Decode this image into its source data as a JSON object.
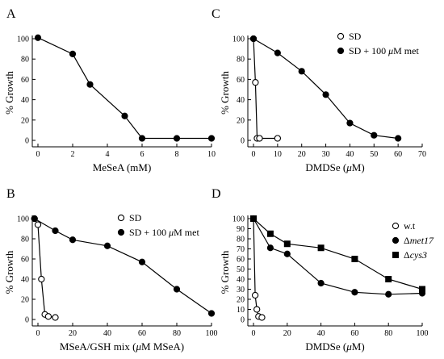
{
  "chart_data": [
    {
      "panel": "A",
      "type": "line",
      "ylabel": "% Growth",
      "xlabel_parts": [
        {
          "t": "MeSeA (mM)",
          "i": false
        }
      ],
      "xlim": [
        0,
        10
      ],
      "ylim": [
        0,
        100
      ],
      "xticks": [
        0,
        2,
        4,
        6,
        8,
        10
      ],
      "yticks": [
        0,
        20,
        40,
        60,
        80,
        100
      ],
      "legend": [],
      "series": [
        {
          "marker": "filled-circle",
          "x": [
            0,
            2,
            3,
            5,
            6,
            8,
            10
          ],
          "y": [
            101,
            85,
            55,
            24,
            2,
            2,
            2
          ]
        }
      ]
    },
    {
      "panel": "C",
      "type": "line",
      "ylabel": "% Growth",
      "xlabel_parts": [
        {
          "t": "DMDSe (",
          "i": false
        },
        {
          "t": "μ",
          "i": true
        },
        {
          "t": "M)",
          "i": false
        }
      ],
      "xlim": [
        0,
        70
      ],
      "ylim": [
        0,
        100
      ],
      "xticks": [
        0,
        10,
        20,
        30,
        40,
        50,
        60,
        70
      ],
      "yticks": [
        0,
        20,
        40,
        60,
        80,
        100
      ],
      "legend": [
        {
          "marker": "open-circle",
          "parts": [
            {
              "t": "SD",
              "i": false
            }
          ]
        },
        {
          "marker": "filled-circle",
          "parts": [
            {
              "t": "SD + 100 ",
              "i": false
            },
            {
              "t": "μ",
              "i": true
            },
            {
              "t": "M met",
              "i": false
            }
          ]
        }
      ],
      "series": [
        {
          "marker": "open-circle",
          "x": [
            0,
            0.8,
            1.5,
            2.5,
            10
          ],
          "y": [
            100,
            57,
            2,
            2,
            2
          ]
        },
        {
          "marker": "filled-circle",
          "x": [
            0,
            10,
            20,
            30,
            40,
            50,
            60
          ],
          "y": [
            100,
            86,
            68,
            45,
            17,
            5,
            2
          ]
        }
      ]
    },
    {
      "panel": "B",
      "type": "line",
      "ylabel": "% Growth",
      "xlabel_parts": [
        {
          "t": "MSeA/GSH mix  (",
          "i": false
        },
        {
          "t": "μ",
          "i": true
        },
        {
          "t": "M MSeA)",
          "i": false
        }
      ],
      "xlim": [
        0,
        100
      ],
      "ylim": [
        0,
        100
      ],
      "xticks": [
        0,
        20,
        40,
        60,
        80,
        100
      ],
      "yticks": [
        0,
        20,
        40,
        60,
        80,
        100
      ],
      "legend": [
        {
          "marker": "open-circle",
          "parts": [
            {
              "t": "SD",
              "i": false
            }
          ]
        },
        {
          "marker": "filled-circle",
          "parts": [
            {
              "t": "SD + 100 ",
              "i": false
            },
            {
              "t": "μ",
              "i": true
            },
            {
              "t": "M met",
              "i": false
            }
          ]
        }
      ],
      "series": [
        {
          "marker": "open-circle",
          "x": [
            -2,
            0,
            2,
            4,
            6,
            10
          ],
          "y": [
            100,
            94,
            40,
            5,
            3,
            2
          ]
        },
        {
          "marker": "filled-circle",
          "x": [
            -2,
            10,
            20,
            40,
            60,
            80,
            100
          ],
          "y": [
            100,
            88,
            79,
            73,
            57,
            30,
            6
          ]
        }
      ]
    },
    {
      "panel": "D",
      "type": "line",
      "ylabel": "% Growth",
      "xlabel_parts": [
        {
          "t": "DMDSe (",
          "i": false
        },
        {
          "t": "μ",
          "i": true
        },
        {
          "t": "M)",
          "i": false
        }
      ],
      "xlim": [
        0,
        100
      ],
      "ylim": [
        0,
        100
      ],
      "xticks": [
        0,
        20,
        40,
        60,
        80,
        100
      ],
      "yticks": [
        0,
        10,
        20,
        30,
        40,
        50,
        60,
        70,
        80,
        90,
        100
      ],
      "legend": [
        {
          "marker": "open-circle",
          "parts": [
            {
              "t": "w.t",
              "i": false
            }
          ]
        },
        {
          "marker": "filled-circle",
          "parts": [
            {
              "t": "Δ",
              "i": false
            },
            {
              "t": "met17",
              "i": true
            }
          ]
        },
        {
          "marker": "filled-square",
          "parts": [
            {
              "t": "Δ",
              "i": false
            },
            {
              "t": "cys3",
              "i": true
            }
          ]
        }
      ],
      "series": [
        {
          "marker": "open-circle",
          "x": [
            0,
            1,
            2,
            3,
            5
          ],
          "y": [
            100,
            24,
            10,
            3,
            2
          ]
        },
        {
          "marker": "filled-circle",
          "x": [
            0,
            10,
            20,
            40,
            60,
            80,
            100
          ],
          "y": [
            100,
            71,
            65,
            36,
            27,
            25,
            26
          ]
        },
        {
          "marker": "filled-square",
          "x": [
            0,
            10,
            20,
            40,
            60,
            80,
            100
          ],
          "y": [
            100,
            85,
            75,
            71,
            60,
            40,
            30
          ]
        }
      ]
    }
  ]
}
